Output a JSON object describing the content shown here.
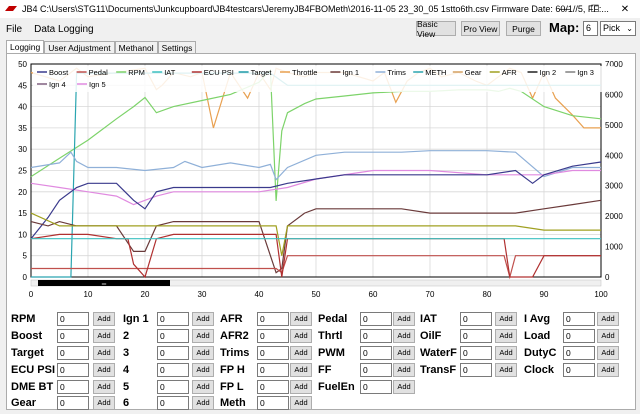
{
  "window": {
    "title": "JB4 C:\\Users\\STG11\\Documents\\Junkcupboard\\JB4testcars\\JeremyJB4FBOMeth\\2016-11-05 23_30_05 1sttо6th.csv Firmware Date: 60/1//5, FF:...",
    "minimize": "—",
    "maximize": "☐",
    "close": "✕"
  },
  "menu": {
    "file": "File",
    "data_logging": "Data Logging"
  },
  "toolbar": {
    "basic_view": "Basic View",
    "pro_view": "Pro View",
    "purge": "Purge",
    "map_label": "Map:",
    "map_value": "6",
    "pick_value": "Pick"
  },
  "tabs": [
    "Logging",
    "User Adjustment",
    "Methanol",
    "Settings"
  ],
  "chart_data": {
    "type": "line",
    "xlim": [
      0,
      100
    ],
    "ylim_left": [
      0,
      50
    ],
    "ylim_right": [
      0,
      7000
    ],
    "x_ticks": [
      "0",
      "10",
      "20",
      "30",
      "40",
      "50",
      "60",
      "70",
      "80",
      "90",
      "100"
    ],
    "y_left_ticks": [
      "0",
      "5",
      "10",
      "15",
      "20",
      "25",
      "30",
      "35",
      "40",
      "45",
      "50"
    ],
    "y_right_ticks": [
      "0",
      "1000",
      "2000",
      "3000",
      "4000",
      "5000",
      "6000",
      "7000"
    ],
    "grid": true,
    "legend_position": "top-left inside",
    "legend": [
      {
        "name": "Boost",
        "color": "#3a3a8c"
      },
      {
        "name": "Pedal",
        "color": "#c0504d"
      },
      {
        "name": "RPM",
        "color": "#7dd36a"
      },
      {
        "name": "IAT",
        "color": "#3cc0c0"
      },
      {
        "name": "ECU PSI",
        "color": "#b03030"
      },
      {
        "name": "Target",
        "color": "#1e9aa8"
      },
      {
        "name": "Throttle",
        "color": "#e8a050"
      },
      {
        "name": "Ign 1",
        "color": "#6a3a3a"
      },
      {
        "name": "Trims",
        "color": "#8fb0d8"
      },
      {
        "name": "METH",
        "color": "#2aa5b0"
      },
      {
        "name": "Gear",
        "color": "#d4a060"
      },
      {
        "name": "AFR",
        "color": "#a0a020"
      },
      {
        "name": "Ign 2",
        "color": "#202020"
      },
      {
        "name": "Ign 3",
        "color": "#808080"
      },
      {
        "name": "Ign 4",
        "color": "#806080"
      },
      {
        "name": "Ign 5",
        "color": "#e08ae0"
      }
    ],
    "series": [
      {
        "name": "Throttle",
        "color": "#e8a050",
        "axis": "left",
        "x": [
          0,
          5,
          8,
          10,
          15,
          20,
          22,
          23,
          25,
          28,
          30,
          32,
          35,
          38,
          40,
          42,
          43,
          45,
          48,
          50,
          55,
          60,
          62,
          64,
          66,
          68,
          70,
          72,
          75,
          78,
          80,
          82,
          84,
          86,
          88,
          90,
          92,
          95,
          97,
          100
        ],
        "y": [
          48,
          46,
          49,
          47,
          48,
          49,
          44,
          45,
          48,
          47,
          48,
          35,
          48,
          42,
          48,
          44,
          49,
          48,
          47,
          48,
          48,
          46,
          48,
          41,
          46,
          48,
          49,
          47,
          48,
          46,
          45,
          47,
          49,
          48,
          42,
          48,
          42,
          38,
          35,
          35
        ]
      },
      {
        "name": "RPM",
        "color": "#7dd36a",
        "axis": "right",
        "x": [
          0,
          5,
          10,
          15,
          18,
          20,
          22,
          25,
          30,
          35,
          40,
          42,
          43,
          44,
          45,
          48,
          50,
          55,
          60,
          65,
          70,
          75,
          80,
          82,
          84,
          86,
          90,
          95,
          100
        ],
        "y": [
          3300,
          3900,
          4500,
          5200,
          5600,
          5900,
          5400,
          5600,
          5800,
          6000,
          6400,
          6800,
          2500,
          4800,
          5400,
          5700,
          5850,
          5950,
          6050,
          6100,
          6100,
          6150,
          6150,
          6100,
          6200,
          6100,
          5600,
          5300,
          5200
        ]
      },
      {
        "name": "METH",
        "color": "#2aa5b0",
        "axis": "right",
        "x": [
          0,
          7,
          8,
          10,
          20,
          30,
          40,
          42,
          45,
          50,
          60,
          70,
          80,
          90,
          100
        ],
        "y": [
          0,
          0,
          6700,
          6700,
          6700,
          6700,
          6700,
          6700,
          6300,
          6300,
          6300,
          6300,
          6300,
          6300,
          6300
        ]
      },
      {
        "name": "Trims",
        "color": "#8fb0d8",
        "axis": "right",
        "x": [
          0,
          5,
          7,
          8,
          10,
          15,
          20,
          25,
          27,
          30,
          35,
          40,
          42,
          43,
          45,
          50,
          55,
          60,
          65,
          70,
          75,
          80,
          85,
          90,
          95,
          100
        ],
        "y": [
          3600,
          3750,
          4100,
          3800,
          3600,
          3600,
          3500,
          3600,
          3800,
          3600,
          3750,
          3600,
          3700,
          3200,
          3600,
          4000,
          4100,
          4100,
          4100,
          4150,
          4150,
          4150,
          4100,
          3300,
          3600,
          3600
        ]
      },
      {
        "name": "Ign 5",
        "color": "#e08ae0",
        "axis": "left",
        "x": [
          0,
          5,
          10,
          15,
          18,
          20,
          22,
          25,
          30,
          40,
          45,
          50,
          60,
          70,
          80,
          85,
          90,
          95,
          100
        ],
        "y": [
          22,
          21,
          20,
          19,
          17,
          18,
          19,
          20,
          20,
          20,
          21,
          23,
          25,
          25,
          24,
          24,
          24,
          25,
          25
        ]
      },
      {
        "name": "Boost",
        "color": "#3a3a8c",
        "axis": "left",
        "x": [
          0,
          3,
          5,
          8,
          10,
          15,
          18,
          20,
          22,
          25,
          30,
          35,
          40,
          42,
          45,
          50,
          55,
          60,
          65,
          70,
          75,
          80,
          85,
          88,
          90,
          95,
          100
        ],
        "y": [
          9,
          14,
          18,
          21,
          22,
          22,
          18,
          16,
          20,
          21,
          21,
          21,
          21,
          21,
          22,
          23,
          24,
          24,
          24,
          24,
          24,
          24,
          25,
          22,
          24,
          26,
          27
        ]
      },
      {
        "name": "Ign 1",
        "color": "#6a3a3a",
        "axis": "left",
        "x": [
          0,
          3,
          5,
          8,
          10,
          15,
          17,
          18,
          20,
          22,
          25,
          30,
          35,
          40,
          43,
          44,
          45,
          48,
          50,
          55,
          60,
          65,
          70,
          75,
          80,
          85,
          90,
          95,
          100
        ],
        "y": [
          13,
          12,
          13,
          12,
          12,
          12,
          8,
          6,
          6,
          12,
          13,
          13,
          13,
          13,
          1,
          2,
          12,
          15,
          16,
          16,
          16,
          16,
          15,
          15,
          15,
          15,
          16,
          17,
          18
        ]
      },
      {
        "name": "AFR",
        "color": "#a0a020",
        "axis": "left",
        "x": [
          0,
          5,
          10,
          15,
          20,
          25,
          30,
          35,
          40,
          43,
          44,
          45,
          50,
          55,
          60,
          65,
          70,
          75,
          80,
          85,
          90,
          95,
          100
        ],
        "y": [
          15,
          12,
          12,
          12,
          12,
          12,
          12,
          12,
          12,
          12,
          5,
          12,
          12,
          12,
          12,
          12,
          12,
          12,
          12,
          12,
          11,
          11,
          11
        ]
      },
      {
        "name": "Pedal",
        "color": "#c0504d",
        "axis": "left",
        "x": [
          0,
          5,
          10,
          15,
          20,
          25,
          30,
          35,
          40,
          43,
          44,
          45,
          50,
          60,
          70,
          80,
          83,
          84,
          85,
          90,
          100
        ],
        "y": [
          2,
          2,
          2,
          2,
          2,
          2,
          2,
          2,
          2,
          2,
          1,
          5,
          5,
          5,
          5,
          5,
          5,
          0,
          5,
          5,
          5
        ]
      },
      {
        "name": "ECU PSI",
        "color": "#b03030",
        "axis": "left",
        "x": [
          0,
          5,
          10,
          15,
          17,
          18,
          20,
          22,
          25,
          30,
          40,
          43,
          44,
          45,
          50,
          60,
          70,
          80,
          83,
          84,
          85,
          88,
          90,
          100
        ],
        "y": [
          9,
          10,
          10,
          9,
          9,
          3,
          0,
          9,
          10,
          10,
          10,
          10,
          0,
          9,
          9,
          9,
          9,
          9,
          9,
          0,
          0,
          0,
          5,
          5
        ]
      },
      {
        "name": "IAT",
        "color": "#3cc0c0",
        "axis": "left",
        "x": [
          0,
          100
        ],
        "y": [
          9,
          9
        ]
      }
    ]
  },
  "scrollbar": {
    "thumb_label": "═"
  },
  "controls": {
    "add_label": "Add",
    "col1": [
      {
        "label": "RPM",
        "value": "0"
      },
      {
        "label": "Boost",
        "value": "0"
      },
      {
        "label": "Target",
        "value": "0"
      },
      {
        "label": "ECU PSI",
        "value": "0"
      },
      {
        "label": "DME BT",
        "value": "0"
      },
      {
        "label": "Gear",
        "value": "0"
      }
    ],
    "col2": [
      {
        "label": "Ign 1",
        "value": "0"
      },
      {
        "label": "2",
        "value": "0"
      },
      {
        "label": "3",
        "value": "0"
      },
      {
        "label": "4",
        "value": "0"
      },
      {
        "label": "5",
        "value": "0"
      },
      {
        "label": "6",
        "value": "0"
      }
    ],
    "col3": [
      {
        "label": "AFR",
        "value": "0"
      },
      {
        "label": "AFR2",
        "value": "0"
      },
      {
        "label": "Trims",
        "value": "0"
      },
      {
        "label": "FP H",
        "value": "0"
      },
      {
        "label": "FP L",
        "value": "0"
      },
      {
        "label": "Meth",
        "value": "0"
      }
    ],
    "col4": [
      {
        "label": "Pedal",
        "value": "0"
      },
      {
        "label": "Thrtl",
        "value": "0"
      },
      {
        "label": "PWM",
        "value": "0"
      },
      {
        "label": "FF",
        "value": "0"
      },
      {
        "label": "FuelEn",
        "value": "0"
      }
    ],
    "col5": [
      {
        "label": "IAT",
        "value": "0"
      },
      {
        "label": "OilF",
        "value": "0"
      },
      {
        "label": "WaterF",
        "value": "0"
      },
      {
        "label": "TransF",
        "value": "0"
      }
    ],
    "col6": [
      {
        "label": "I Avg",
        "value": "0"
      },
      {
        "label": "Load",
        "value": "0"
      },
      {
        "label": "DutyC",
        "value": "0"
      },
      {
        "label": "Clock",
        "value": "0"
      }
    ]
  }
}
